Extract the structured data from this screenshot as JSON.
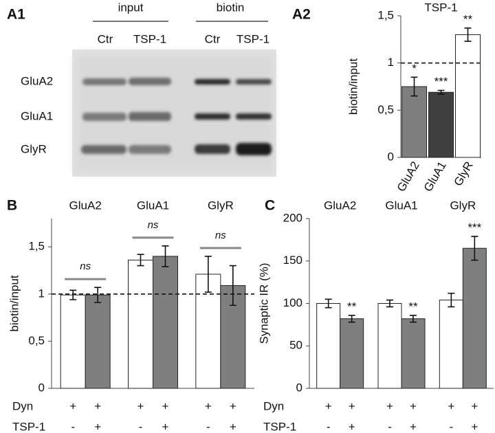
{
  "blot": {
    "panel": "A1",
    "groups": [
      "input",
      "biotin"
    ],
    "lanes": [
      "Ctr",
      "TSP-1",
      "Ctr",
      "TSP-1"
    ],
    "rows": [
      "GluA2",
      "GluA1",
      "GlyR"
    ]
  },
  "chart_data": [
    {
      "type": "bar",
      "panel": "A2",
      "title": "TSP-1",
      "ylabel": "biotin/input",
      "categories": [
        "GluA2",
        "GluA1",
        "GlyR"
      ],
      "series": [
        {
          "colors": [
            "#7f7f7f",
            "#3f3f3f",
            "#ffffff"
          ],
          "values": [
            0.75,
            0.69,
            1.3
          ],
          "errors": [
            0.1,
            0.02,
            0.07
          ],
          "annotations": [
            "*",
            "***",
            "**"
          ]
        }
      ],
      "reference_line": 1,
      "ylim": [
        0,
        1.5
      ],
      "yticks": [
        0,
        {
          "value": 0.5,
          "label": "0,5"
        },
        1,
        {
          "value": 1.5,
          "label": "1,5"
        }
      ]
    },
    {
      "type": "bar",
      "panel": "B",
      "ylabel": "biotin/input",
      "categories": [
        "GluA2",
        "GluA1",
        "GlyR"
      ],
      "series": [
        {
          "color": "#ffffff",
          "values": [
            0.99,
            1.36,
            1.21
          ],
          "errors": [
            0.05,
            0.06,
            0.19
          ]
        },
        {
          "color": "#7f7f7f",
          "values": [
            0.99,
            1.4,
            1.09
          ],
          "errors": [
            0.08,
            0.11,
            0.21
          ]
        }
      ],
      "group_annotations": [
        "ns",
        "ns",
        "ns"
      ],
      "reference_line": 1,
      "conditions": [
        {
          "name": "Dyn",
          "signs": [
            "+",
            "+",
            "+",
            "+",
            "+",
            "+"
          ]
        },
        {
          "name": "TSP-1",
          "signs": [
            "-",
            "+",
            "-",
            "+",
            "-",
            "+"
          ]
        }
      ],
      "ylim": [
        0,
        1.8
      ],
      "yticks": [
        0,
        {
          "value": 0.5,
          "label": "0,5"
        },
        1,
        {
          "value": 1.5,
          "label": "1,5"
        }
      ]
    },
    {
      "type": "bar",
      "panel": "C",
      "ylabel": "Synaptic  IR (%)",
      "categories": [
        "GluA2",
        "GluA1",
        "GlyR"
      ],
      "series": [
        {
          "color": "#ffffff",
          "values": [
            100,
            100,
            104
          ],
          "errors": [
            5,
            4,
            8
          ]
        },
        {
          "color": "#7f7f7f",
          "values": [
            82,
            82,
            165
          ],
          "errors": [
            4,
            4,
            14
          ],
          "annotations": [
            "**",
            "**",
            "***"
          ]
        }
      ],
      "conditions": [
        {
          "name": "Dyn",
          "signs": [
            "+",
            "+",
            "+",
            "+",
            "+",
            "+"
          ]
        },
        {
          "name": "TSP-1",
          "signs": [
            "-",
            "+",
            "-",
            "+",
            "-",
            "+"
          ]
        }
      ],
      "ylim": [
        0,
        200
      ],
      "yticks": [
        0,
        50,
        100,
        150,
        200
      ]
    }
  ]
}
